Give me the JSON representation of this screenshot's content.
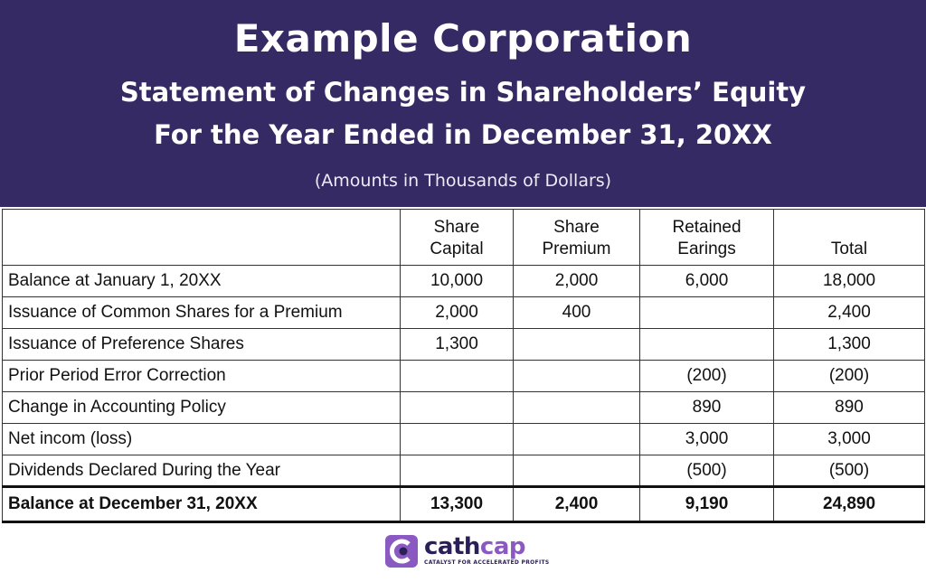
{
  "header": {
    "title": "Example Corporation",
    "subtitle_line1": "Statement of Changes in Shareholders’ Equity",
    "subtitle_line2": "For the Year Ended in December 31, 20XX",
    "note": "(Amounts in Thousands of Dollars)",
    "background_color": "#352a63"
  },
  "table": {
    "columns": [
      {
        "line1": "",
        "line2": ""
      },
      {
        "line1": "Share",
        "line2": "Capital"
      },
      {
        "line1": "Share",
        "line2": "Premium"
      },
      {
        "line1": "Retained",
        "line2": "Earings"
      },
      {
        "line1": "",
        "line2": "Total"
      }
    ],
    "rows": [
      {
        "label": "Balance at January 1, 20XX",
        "share_capital": "10,000",
        "share_premium": "2,000",
        "retained_earnings": "6,000",
        "total": "18,000"
      },
      {
        "label": "Issuance of Common Shares for a Premium",
        "share_capital": "2,000",
        "share_premium": "400",
        "retained_earnings": "",
        "total": "2,400"
      },
      {
        "label": "Issuance of Preference Shares",
        "share_capital": "1,300",
        "share_premium": "",
        "retained_earnings": "",
        "total": "1,300"
      },
      {
        "label": "Prior Period Error Correction",
        "share_capital": "",
        "share_premium": "",
        "retained_earnings": "(200)",
        "total": "(200)"
      },
      {
        "label": "Change in Accounting Policy",
        "share_capital": "",
        "share_premium": "",
        "retained_earnings": "890",
        "total": "890"
      },
      {
        "label": "Net incom (loss)",
        "share_capital": "",
        "share_premium": "",
        "retained_earnings": "3,000",
        "total": "3,000"
      },
      {
        "label": "Dividends Declared During the Year",
        "share_capital": "",
        "share_premium": "",
        "retained_earnings": "(500)",
        "total": "(500)"
      }
    ],
    "total_row": {
      "label": "Balance at December 31, 20XX",
      "share_capital": "13,300",
      "share_premium": "2,400",
      "retained_earnings": "9,190",
      "total": "24,890"
    }
  },
  "logo": {
    "name_part1": "cath",
    "name_part2": "cap",
    "tagline": "CATALYST FOR ACCELERATED PROFITS",
    "dark_color": "#2b1f57",
    "accent_color": "#8a5ac2",
    "icon": "cathcap-logo-mark"
  }
}
